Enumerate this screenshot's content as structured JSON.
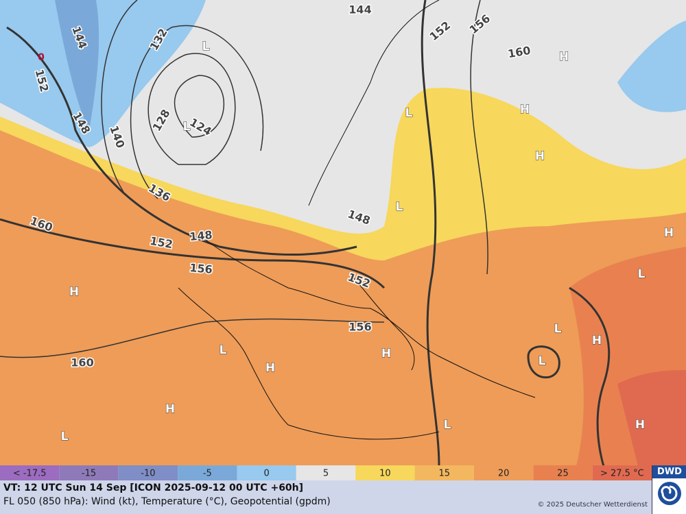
{
  "legend": {
    "items": [
      {
        "label": "< -17.5",
        "color": "#9c6cc0"
      },
      {
        "label": "-15",
        "color": "#8f7ab9"
      },
      {
        "label": "-10",
        "color": "#7f8ec6"
      },
      {
        "label": "-5",
        "color": "#7aa9d9"
      },
      {
        "label": "0",
        "color": "#98c9ee"
      },
      {
        "label": "5",
        "color": "#e6e6e6"
      },
      {
        "label": "10",
        "color": "#f7d75c"
      },
      {
        "label": "15",
        "color": "#f3b85f"
      },
      {
        "label": "20",
        "color": "#ee9c58"
      },
      {
        "label": "25",
        "color": "#e8814f"
      },
      {
        "label": "> 27.5 °C",
        "color": "#e06a50"
      }
    ]
  },
  "footer": {
    "line1": "VT: 12 UTC Sun  14 Sep [ICON 2025-09-12 00 UTC +60h]",
    "line2": "FL 050 (850 hPa): Wind (kt), Temperature (°C), Geopotential (gpdm)",
    "copyright": "© 2025 Deutscher Wetterdienst",
    "logo": "DWD"
  },
  "map": {
    "contour_labels": [
      "144",
      "144",
      "152",
      "132",
      "128",
      "124",
      "140",
      "148",
      "136",
      "152",
      "156",
      "160",
      "160",
      "152",
      "148",
      "156",
      "148",
      "152",
      "156",
      "160"
    ],
    "pressure_centers": [
      "L",
      "L",
      "H",
      "H",
      "L",
      "H",
      "L",
      "H",
      "L",
      "H",
      "L",
      "H",
      "L",
      "L",
      "H",
      "H",
      "H",
      "L",
      "L",
      "H"
    ],
    "freezing_label": "0"
  }
}
